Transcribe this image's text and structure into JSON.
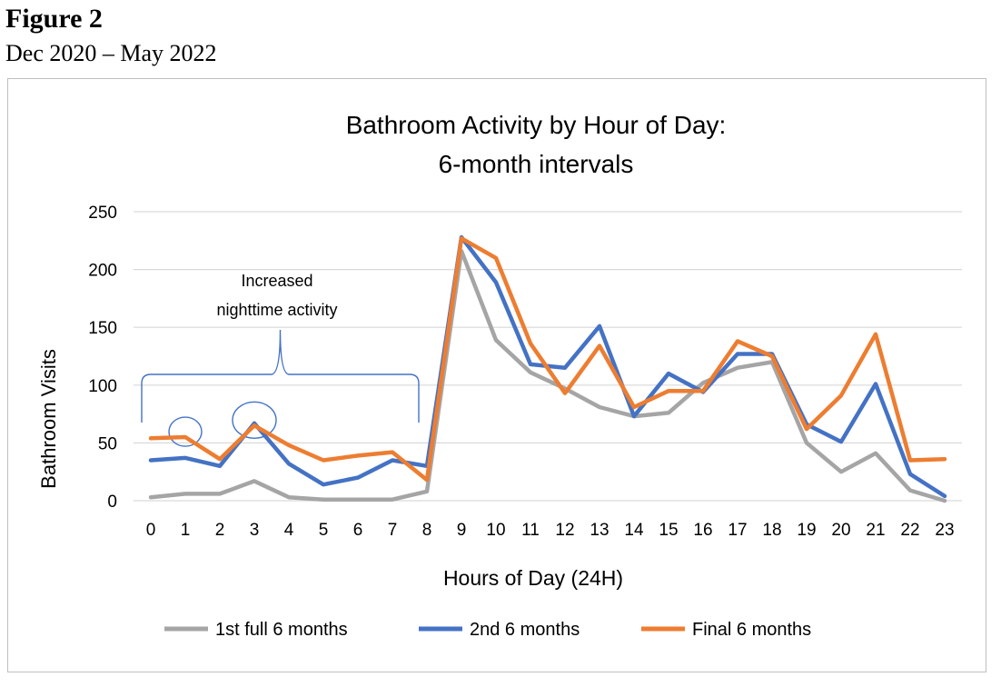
{
  "figure": {
    "label": "Figure 2",
    "date_range": "Dec 2020 – May 2022"
  },
  "chart_data": {
    "type": "line",
    "title_lines": [
      "Bathroom Activity by Hour of Day:",
      "6-month intervals"
    ],
    "xlabel": "Hours of Day (24H)",
    "ylabel": "Bathroom Visits",
    "x": [
      0,
      1,
      2,
      3,
      4,
      5,
      6,
      7,
      8,
      9,
      10,
      11,
      12,
      13,
      14,
      15,
      16,
      17,
      18,
      19,
      20,
      21,
      22,
      23
    ],
    "ylim": [
      0,
      250
    ],
    "yticks": [
      0,
      50,
      100,
      150,
      200,
      250
    ],
    "grid": true,
    "legend_position": "bottom",
    "series": [
      {
        "name": "1st full 6 months",
        "color": "#a5a5a5",
        "values": [
          3,
          6,
          6,
          17,
          3,
          1,
          1,
          1,
          8,
          216,
          139,
          111,
          97,
          81,
          73,
          76,
          102,
          115,
          120,
          50,
          25,
          41,
          9,
          0
        ]
      },
      {
        "name": "2nd 6 months",
        "color": "#4472c4",
        "values": [
          35,
          37,
          30,
          67,
          32,
          14,
          20,
          35,
          30,
          228,
          189,
          118,
          115,
          151,
          73,
          110,
          94,
          127,
          127,
          66,
          51,
          101,
          23,
          4
        ]
      },
      {
        "name": "Final 6 months",
        "color": "#ed7d31",
        "values": [
          54,
          55,
          36,
          65,
          48,
          35,
          39,
          42,
          18,
          227,
          210,
          136,
          93,
          134,
          81,
          95,
          95,
          138,
          125,
          62,
          91,
          144,
          35,
          36
        ]
      }
    ],
    "annotation": {
      "text_lines": [
        "Increased",
        "nighttime activity"
      ],
      "bracket_from_hour": 0,
      "bracket_to_hour": 7.5,
      "circled_points": [
        {
          "series": "Final 6 months",
          "hour": 1
        },
        {
          "series": "Final 6 months",
          "hour": 3
        }
      ]
    },
    "annotation_color": "#4472c4"
  }
}
